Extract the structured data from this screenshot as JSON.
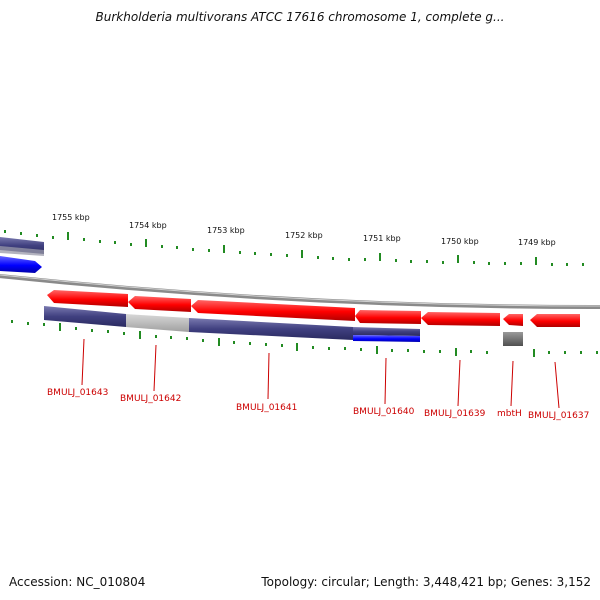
{
  "title": "Burkholderia multivorans ATCC 17616 chromosome 1, complete g...",
  "footer": {
    "accession": "Accession: NC_010804",
    "summary": "Topology: circular; Length: 3,448,421 bp; Genes: 3,152"
  },
  "colors": {
    "forward_gene": "#ff0000",
    "reverse_gene": "#0000ff",
    "rna_or_other": "#808080",
    "cds_dark": "#40407a",
    "cds_light": "#c0c0c0",
    "backbone": "#808080",
    "tick": "#228b22",
    "gene_label": "#cc0000"
  },
  "scale": {
    "unit": "kbp",
    "labels": [
      "1755 kbp",
      "1754 kbp",
      "1753 kbp",
      "1752 kbp",
      "1751 kbp",
      "1750 kbp",
      "1749 kbp"
    ]
  },
  "genes": [
    {
      "id": "g1643",
      "label": "BMULJ_01643",
      "strand": "reverse"
    },
    {
      "id": "g1642",
      "label": "BMULJ_01642",
      "strand": "reverse"
    },
    {
      "id": "g1641",
      "label": "BMULJ_01641",
      "strand": "reverse"
    },
    {
      "id": "g1640",
      "label": "BMULJ_01640",
      "strand": "reverse"
    },
    {
      "id": "g1639",
      "label": "BMULJ_01639",
      "strand": "reverse"
    },
    {
      "id": "mbtH",
      "label": "mbtH",
      "strand": "reverse"
    },
    {
      "id": "g1637",
      "label": "BMULJ_01637",
      "strand": "reverse"
    }
  ]
}
